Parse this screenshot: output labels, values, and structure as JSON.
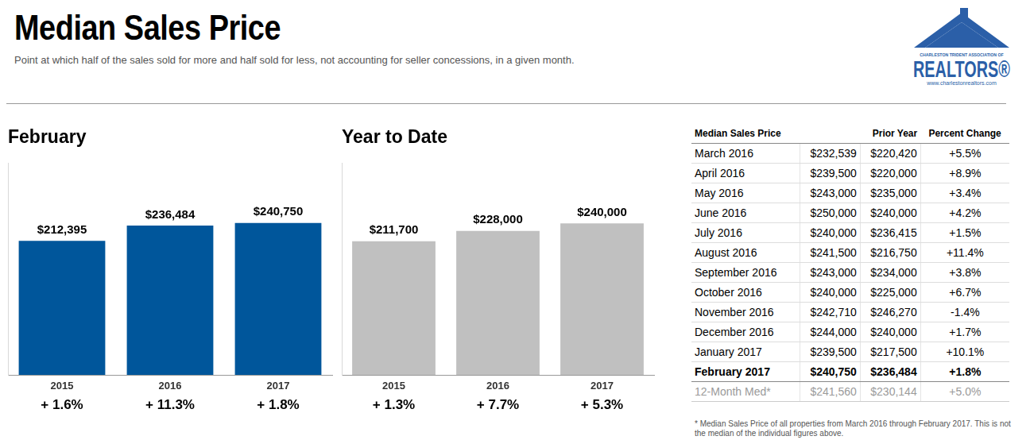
{
  "header": {
    "title": "Median Sales Price",
    "subtitle": "Point at which half of the sales sold for more and half sold for less, not accounting for seller concessions, in a given month."
  },
  "logo": {
    "association": "CHARLESTON TRIDENT ASSOCIATION OF",
    "name": "REALTORS®",
    "url": "www.charlestonrealtors.com"
  },
  "chart_data": [
    {
      "type": "bar",
      "title": "February",
      "categories": [
        "2015",
        "2016",
        "2017"
      ],
      "values": [
        212395,
        236484,
        240750
      ],
      "value_labels": [
        "$212,395",
        "$236,484",
        "$240,750"
      ],
      "change_labels": [
        "+ 1.6%",
        "+ 11.3%",
        "+ 1.8%"
      ],
      "color": "#00569b",
      "ylim": [
        0,
        335000
      ],
      "grid": false,
      "data_labels": true,
      "tick_labels": "x"
    },
    {
      "type": "bar",
      "title": "Year to Date",
      "categories": [
        "2015",
        "2016",
        "2017"
      ],
      "values": [
        211700,
        228000,
        240000
      ],
      "value_labels": [
        "$211,700",
        "$228,000",
        "$240,000"
      ],
      "change_labels": [
        "+ 1.3%",
        "+ 7.7%",
        "+ 5.3%"
      ],
      "color": "#c0c0c0",
      "ylim": [
        0,
        335000
      ],
      "grid": false,
      "data_labels": true,
      "tick_labels": "x"
    }
  ],
  "table": {
    "columns": [
      "Median Sales Price",
      "Prior Year",
      "Percent Change"
    ],
    "rows": [
      [
        "March 2016",
        "$232,539",
        "$220,420",
        "+5.5%"
      ],
      [
        "April 2016",
        "$239,500",
        "$220,000",
        "+8.9%"
      ],
      [
        "May 2016",
        "$243,000",
        "$235,000",
        "+3.4%"
      ],
      [
        "June 2016",
        "$250,000",
        "$240,000",
        "+4.2%"
      ],
      [
        "July 2016",
        "$240,000",
        "$236,415",
        "+1.5%"
      ],
      [
        "August 2016",
        "$241,500",
        "$216,750",
        "+11.4%"
      ],
      [
        "September 2016",
        "$243,000",
        "$234,000",
        "+3.8%"
      ],
      [
        "October 2016",
        "$240,000",
        "$225,000",
        "+6.7%"
      ],
      [
        "November 2016",
        "$242,710",
        "$246,270",
        "-1.4%"
      ],
      [
        "December 2016",
        "$244,000",
        "$240,000",
        "+1.7%"
      ],
      [
        "January 2017",
        "$239,500",
        "$217,500",
        "+10.1%"
      ]
    ],
    "current_row": [
      "February 2017",
      "$240,750",
      "$236,484",
      "+1.8%"
    ],
    "summary_row": [
      "12-Month Med*",
      "$241,560",
      "$230,144",
      "+5.0%"
    ]
  },
  "footnote": "* Median Sales Price of all properties from March 2016 through February 2017. This is not the median of the individual figures above."
}
